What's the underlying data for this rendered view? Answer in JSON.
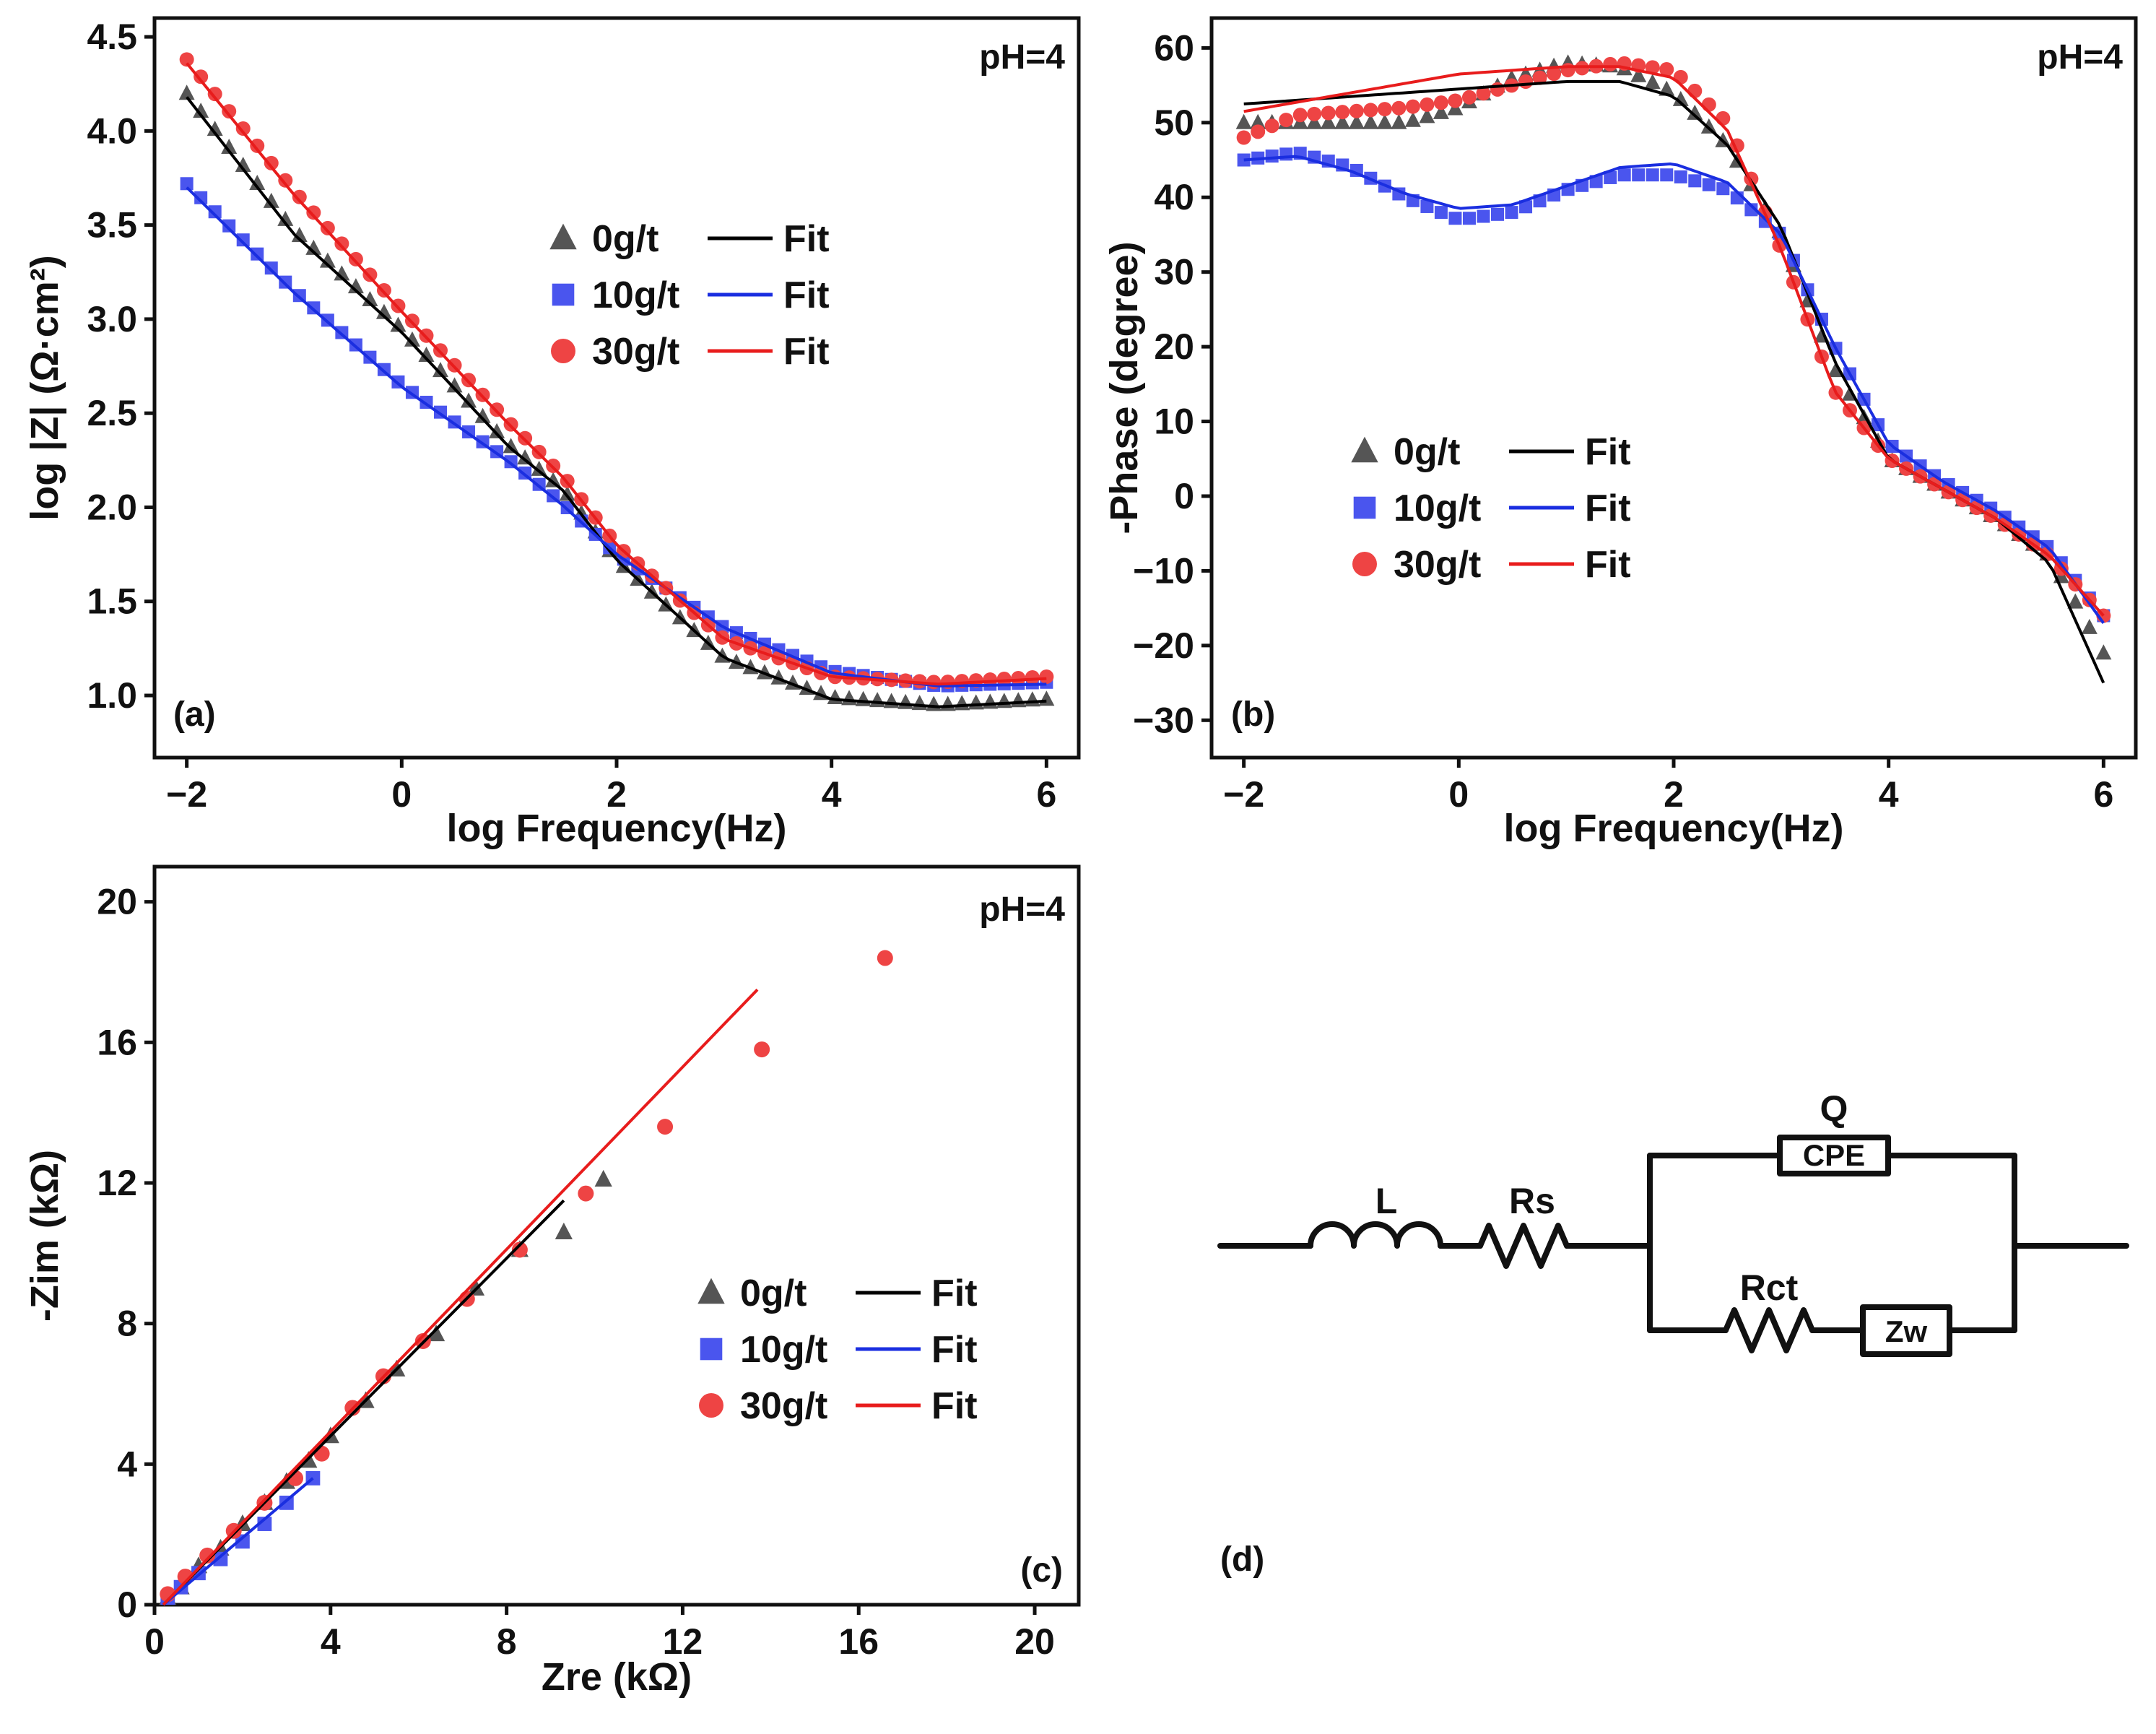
{
  "colors": {
    "s0": "#555555",
    "s10": "#4a55ee",
    "s30": "#ee4444",
    "f0": "#000000",
    "f10": "#1a2ee0",
    "f30": "#e81c1c"
  },
  "legend": {
    "fit_label": "Fit"
  },
  "panels": [
    {
      "id": "a",
      "corner_label": "(a)",
      "condition_label": "pH=4",
      "xlabel": "log Frequency(Hz)",
      "ylabel": "log |Z| (Ω·cm²)",
      "xlim": [
        -2.3,
        6.3
      ],
      "ylim": [
        0.67,
        4.6
      ],
      "xticks": [
        -2,
        0,
        2,
        4,
        6
      ],
      "yticks": [
        1.0,
        1.5,
        2.0,
        2.5,
        3.0,
        3.5,
        4.0,
        4.5
      ],
      "ytick_decimals": 1
    },
    {
      "id": "b",
      "corner_label": "(b)",
      "condition_label": "pH=4",
      "xlabel": "log Frequency(Hz)",
      "ylabel": "-Phase (degree)",
      "xlim": [
        -2.3,
        6.3
      ],
      "ylim": [
        -35,
        64
      ],
      "xticks": [
        -2,
        0,
        2,
        4,
        6
      ],
      "yticks": [
        -30,
        -20,
        -10,
        0,
        10,
        20,
        30,
        40,
        50,
        60
      ],
      "ytick_decimals": 0
    },
    {
      "id": "c",
      "corner_label": "(c)",
      "condition_label": "pH=4",
      "xlabel": "Zre (kΩ)",
      "ylabel": "-Zim (kΩ)",
      "xlim": [
        0,
        21
      ],
      "ylim": [
        0,
        21
      ],
      "xticks": [
        0,
        4,
        8,
        12,
        16,
        20
      ],
      "yticks": [
        0,
        4,
        8,
        12,
        16,
        20
      ],
      "ytick_decimals": 0
    }
  ],
  "chart_data": [
    {
      "type": "scatter",
      "title": "(a) pH=4",
      "xlabel": "log Frequency(Hz)",
      "ylabel": "log |Z| (Ω·cm²)",
      "series": [
        {
          "name": "0g/t",
          "marker": "triangle",
          "x": [
            -2,
            -1,
            0,
            1,
            1.5,
            2,
            3,
            4,
            5,
            6
          ],
          "values": [
            4.2,
            3.47,
            2.95,
            2.33,
            2.1,
            1.72,
            1.2,
            0.99,
            0.95,
            0.98
          ]
        },
        {
          "name": "10g/t",
          "marker": "square",
          "x": [
            -2,
            -1,
            0,
            1,
            1.5,
            2,
            3,
            4,
            5,
            6
          ],
          "values": [
            3.72,
            3.15,
            2.65,
            2.25,
            2.02,
            1.75,
            1.36,
            1.13,
            1.05,
            1.07
          ]
        },
        {
          "name": "30g/t",
          "marker": "circle",
          "x": [
            -2,
            -1,
            0,
            1,
            1.5,
            2,
            3,
            4,
            5,
            6
          ],
          "values": [
            4.38,
            3.68,
            3.05,
            2.45,
            2.17,
            1.8,
            1.3,
            1.1,
            1.07,
            1.1
          ]
        },
        {
          "name": "Fit",
          "for": "0g/t",
          "type": "line",
          "x": [
            -2,
            -1,
            0,
            1,
            1.5,
            2,
            3,
            4,
            5,
            6
          ],
          "values": [
            4.18,
            3.45,
            2.93,
            2.32,
            2.09,
            1.72,
            1.2,
            0.98,
            0.94,
            0.97
          ]
        },
        {
          "name": "Fit",
          "for": "10g/t",
          "type": "line",
          "x": [
            -2,
            -1,
            0,
            1,
            1.5,
            2,
            3,
            4,
            5,
            6
          ],
          "values": [
            3.7,
            3.14,
            2.64,
            2.24,
            2.01,
            1.75,
            1.36,
            1.12,
            1.05,
            1.06
          ]
        },
        {
          "name": "Fit",
          "for": "30g/t",
          "type": "line",
          "x": [
            -2,
            -1,
            0,
            1,
            1.5,
            2,
            3,
            4,
            5,
            6
          ],
          "values": [
            4.36,
            3.66,
            3.04,
            2.44,
            2.16,
            1.8,
            1.3,
            1.1,
            1.06,
            1.09
          ]
        }
      ]
    },
    {
      "type": "scatter",
      "title": "(b) pH=4",
      "xlabel": "log Frequency(Hz)",
      "ylabel": "-Phase (degree)",
      "series": [
        {
          "name": "0g/t",
          "marker": "triangle",
          "x": [
            -2,
            -1,
            -0.5,
            0,
            0.5,
            1,
            1.5,
            2,
            2.5,
            3,
            3.5,
            4,
            4.5,
            5,
            5.5,
            6
          ],
          "values": [
            50,
            50,
            50,
            52,
            56,
            58,
            57.5,
            54,
            47,
            35,
            17,
            5,
            1,
            -3,
            -8,
            -21
          ]
        },
        {
          "name": "10g/t",
          "marker": "square",
          "x": [
            -2,
            -1.5,
            -1,
            -0.5,
            0,
            0.5,
            1,
            1.5,
            2,
            2.5,
            3,
            3.5,
            4,
            4.5,
            5,
            5.5,
            6
          ],
          "values": [
            45,
            46,
            44,
            40,
            37,
            38,
            41,
            43,
            43,
            41,
            35,
            20,
            7,
            2,
            -2,
            -7,
            -16
          ]
        },
        {
          "name": "30g/t",
          "marker": "circle",
          "x": [
            -2,
            -1.5,
            -1,
            -0.5,
            0,
            0.5,
            1,
            1.5,
            2,
            2.5,
            3,
            3.5,
            4,
            4.5,
            5,
            5.5,
            6
          ],
          "values": [
            48,
            51,
            51.5,
            52,
            53,
            55,
            57,
            58,
            57,
            50,
            33,
            14,
            5,
            1,
            -3,
            -8,
            -16
          ]
        },
        {
          "name": "Fit",
          "for": "0g/t",
          "type": "line",
          "x": [
            -2,
            -1,
            0,
            1,
            1.5,
            2,
            2.5,
            3,
            3.5,
            4,
            4.5,
            5,
            5.5,
            6
          ],
          "values": [
            52.5,
            53.5,
            54.5,
            55.5,
            55.5,
            53.5,
            47,
            36,
            18,
            5,
            1,
            -3,
            -9,
            -25
          ]
        },
        {
          "name": "Fit",
          "for": "10g/t",
          "type": "line",
          "x": [
            -2,
            -1.5,
            -1,
            -0.5,
            0,
            0.5,
            1,
            1.5,
            2,
            2.5,
            3,
            3.5,
            4,
            4.5,
            5,
            5.5,
            6
          ],
          "values": [
            45,
            45.5,
            43.5,
            40.5,
            38.5,
            39,
            41.5,
            44,
            44.5,
            42,
            35,
            20,
            7,
            2,
            -2,
            -7,
            -17
          ]
        },
        {
          "name": "Fit",
          "for": "30g/t",
          "type": "line",
          "x": [
            -2,
            -1,
            0,
            1,
            1.5,
            2,
            2.5,
            3,
            3.5,
            4,
            4.5,
            5,
            5.5,
            6
          ],
          "values": [
            51.5,
            54,
            56.5,
            57.5,
            57.5,
            56,
            49,
            33,
            14,
            5,
            1,
            -3,
            -8,
            -16
          ]
        }
      ]
    },
    {
      "type": "scatter",
      "title": "(c) pH=4",
      "xlabel": "Zre (kΩ)",
      "ylabel": "-Zim (kΩ)",
      "series": [
        {
          "name": "0g/t",
          "marker": "triangle",
          "x": [
            0.3,
            0.6,
            1,
            1.5,
            2,
            2.5,
            3,
            3.5,
            4,
            4.8,
            5.5,
            6.4,
            7.3,
            8.3,
            9.3,
            10.2
          ],
          "values": [
            0.2,
            0.5,
            1.1,
            1.6,
            2.3,
            2.9,
            3.5,
            4.1,
            4.8,
            5.8,
            6.7,
            7.7,
            9.0,
            10.1,
            10.6,
            12.1
          ]
        },
        {
          "name": "10g/t",
          "marker": "square",
          "x": [
            0.3,
            0.6,
            1,
            1.5,
            2,
            2.5,
            3,
            3.6
          ],
          "values": [
            0.2,
            0.5,
            0.9,
            1.3,
            1.8,
            2.3,
            2.9,
            3.6
          ]
        },
        {
          "name": "30g/t",
          "marker": "circle",
          "x": [
            0.3,
            0.7,
            1.2,
            1.8,
            2.5,
            3.2,
            3.8,
            4.5,
            5.2,
            6.1,
            7.1,
            8.3,
            9.8,
            11.6,
            13.8,
            16.6
          ],
          "values": [
            0.3,
            0.8,
            1.4,
            2.1,
            2.9,
            3.6,
            4.3,
            5.6,
            6.5,
            7.5,
            8.7,
            10.1,
            11.7,
            13.6,
            15.8,
            18.4
          ]
        },
        {
          "name": "Fit",
          "for": "0g/t",
          "type": "line",
          "x": [
            0.2,
            9.3
          ],
          "values": [
            0.0,
            11.5
          ]
        },
        {
          "name": "Fit",
          "for": "10g/t",
          "type": "line",
          "x": [
            0.2,
            3.6
          ],
          "values": [
            0.0,
            3.6
          ]
        },
        {
          "name": "Fit",
          "for": "30g/t",
          "type": "line",
          "x": [
            0.2,
            13.7
          ],
          "values": [
            0.0,
            17.5
          ]
        }
      ]
    }
  ],
  "circuit": {
    "panel_label": "(d)",
    "inductor": "L",
    "resistor_s": "Rs",
    "cpe_name": "Q",
    "cpe_box": "CPE",
    "resistor_ct": "Rct",
    "warburg": "Zw"
  }
}
